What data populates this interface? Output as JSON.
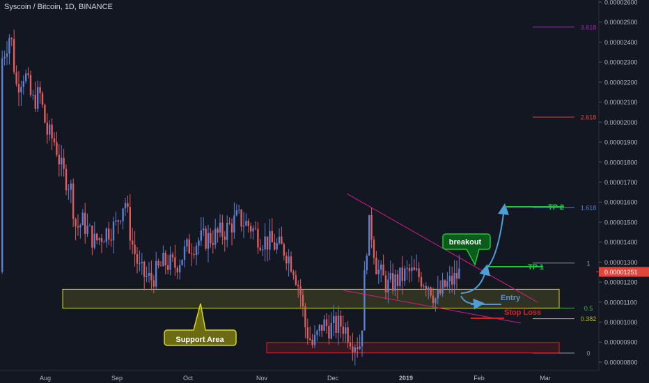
{
  "header": {
    "title": "Syscoin / Bitcoin, 1D, BINANCE"
  },
  "colors": {
    "background": "#131722",
    "candle_up": "#5b7fd1",
    "candle_down": "#e05c5c",
    "axis_text": "#b2b5be",
    "support_zone": "#d8d820",
    "stop_zone": "#e02020",
    "trendline": "#d81b8a",
    "tp_green": "#22c53a",
    "entry_blue": "#5b8fd6",
    "arrow": "#4f9fd6",
    "price_badge": "#e0463b"
  },
  "chart_data": {
    "type": "candlestick",
    "title": "Syscoin / Bitcoin, 1D, BINANCE",
    "ylim": [
      7.8e-06,
      2.6e-06
    ],
    "y_ticks": [
      "0.00002600",
      "0.00002500",
      "0.00002400",
      "0.00002300",
      "0.00002200",
      "0.00002100",
      "0.00002000",
      "0.00001900",
      "0.00001800",
      "0.00001700",
      "0.00001600",
      "0.00001500",
      "0.00001400",
      "0.00001300",
      "0.00001200",
      "0.00001100",
      "0.00001000",
      "0.00000900",
      "0.00000800"
    ],
    "y_tick_values": [
      2.6e-05,
      2.5e-05,
      2.4e-05,
      2.3e-05,
      2.2e-05,
      2.1e-05,
      2e-05,
      1.9e-05,
      1.8e-05,
      1.7e-05,
      1.6e-05,
      1.5e-05,
      1.4e-05,
      1.3e-05,
      1.2e-05,
      1.1e-05,
      1e-05,
      9e-06,
      8e-06
    ],
    "x_ticks": [
      "Aug",
      "Sep",
      "Oct",
      "Nov",
      "Dec",
      "2019",
      "Feb",
      "Mar"
    ],
    "current_price": "0.00001251",
    "current_price_value": 1.251e-05,
    "fib_levels": [
      {
        "label": "3.618",
        "value": 2.475e-05,
        "color": "#9c27b0"
      },
      {
        "label": "2.618",
        "value": 2.025e-05,
        "color": "#e0463b"
      },
      {
        "label": "1.618",
        "value": 1.573e-05,
        "color": "#5b7fd1"
      },
      {
        "label": "1",
        "value": 1.295e-05,
        "color": "#9598a1"
      },
      {
        "label": "0.5",
        "value": 1.07e-05,
        "color": "#4caf50"
      },
      {
        "label": "0.382",
        "value": 1.017e-05,
        "color": "#b8b822"
      },
      {
        "label": "0",
        "value": 8.45e-06,
        "color": "#9598a1"
      }
    ],
    "annotations": {
      "support_label": "Support Area",
      "breakout_label": "breakout",
      "entry_label": "Entry",
      "stop_label": "Stop Loss",
      "tp1_label": "TP 1",
      "tp2_label": "TP 2"
    },
    "support_zone": [
      1.07e-05,
      1.164e-05
    ],
    "stop_zone": [
      8.46e-06,
      8.98e-06
    ]
  }
}
